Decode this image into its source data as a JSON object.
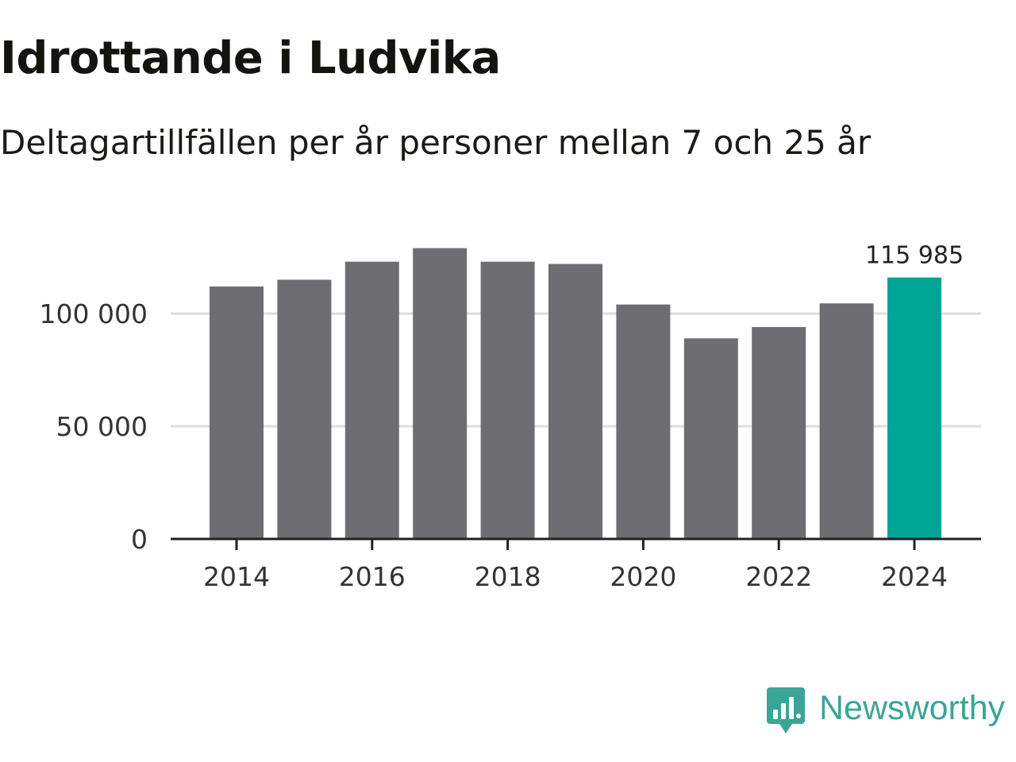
{
  "chart_data": {
    "type": "bar",
    "title": "Idrottande i Ludvika",
    "subtitle": "Deltagartillfällen per år personer mellan 7 och 25 år",
    "categories": [
      "2014",
      "2015",
      "2016",
      "2017",
      "2018",
      "2019",
      "2020",
      "2021",
      "2022",
      "2023",
      "2024"
    ],
    "values": [
      112000,
      115000,
      123000,
      129000,
      123000,
      122000,
      104000,
      89000,
      94000,
      104500,
      115985
    ],
    "x_ticks": [
      "2014",
      "2016",
      "2018",
      "2020",
      "2022",
      "2024"
    ],
    "y_ticks": [
      {
        "value": 0,
        "label": "0"
      },
      {
        "value": 50000,
        "label": "50 000"
      },
      {
        "value": 100000,
        "label": "100 000"
      }
    ],
    "ylim": [
      0,
      130000
    ],
    "highlight_index": 10,
    "annotation": {
      "index": 10,
      "label": "115 985"
    },
    "grid": true,
    "colors": {
      "bar": "#6e6d72",
      "highlight": "#00a596",
      "grid": "#dddddd",
      "axis": "#222222"
    }
  },
  "brand": {
    "name": "Newsworthy",
    "icon": "newsworthy-logo-icon",
    "color": "#3aa597"
  }
}
